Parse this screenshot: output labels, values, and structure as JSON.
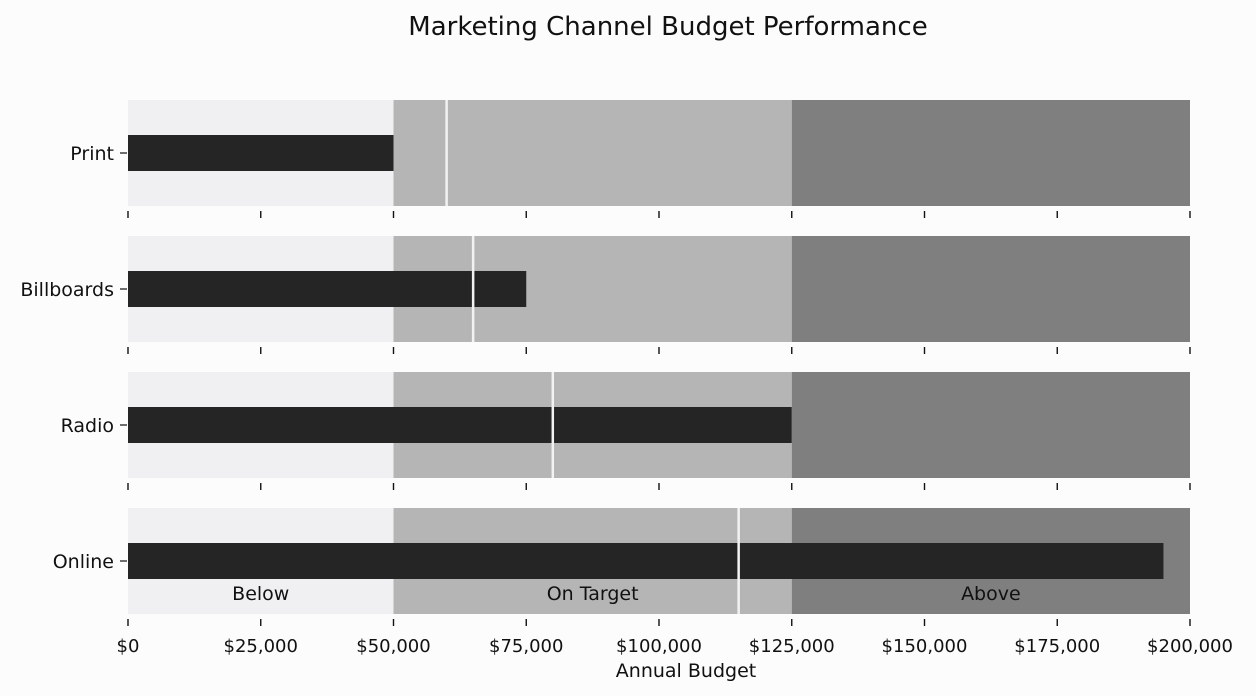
{
  "chart_data": {
    "type": "bar",
    "title": "Marketing Channel Budget Performance",
    "xlabel": "Annual Budget",
    "ylabel": "",
    "xlim": [
      0,
      200000
    ],
    "x_ticks": [
      0,
      25000,
      50000,
      75000,
      100000,
      125000,
      150000,
      175000,
      200000
    ],
    "x_tick_labels": [
      "$0",
      "$25,000",
      "$50,000",
      "$75,000",
      "$100,000",
      "$125,000",
      "$150,000",
      "$175,000",
      "$200,000"
    ],
    "ranges": [
      {
        "label": "Below",
        "from": 0,
        "to": 50000,
        "color": "#f0f0f2"
      },
      {
        "label": "On Target",
        "from": 50000,
        "to": 125000,
        "color": "#b6b5b6"
      },
      {
        "label": "Above",
        "from": 125000,
        "to": 200000,
        "color": "#807f80"
      }
    ],
    "categories": [
      "Print",
      "Billboards",
      "Radio",
      "Online"
    ],
    "values": [
      50000,
      75000,
      125000,
      195000
    ],
    "targets": [
      60000,
      65000,
      80000,
      115000
    ],
    "bar_color": "#262526",
    "target_color": "#f2f2f2",
    "grid": false,
    "legend": "none"
  }
}
